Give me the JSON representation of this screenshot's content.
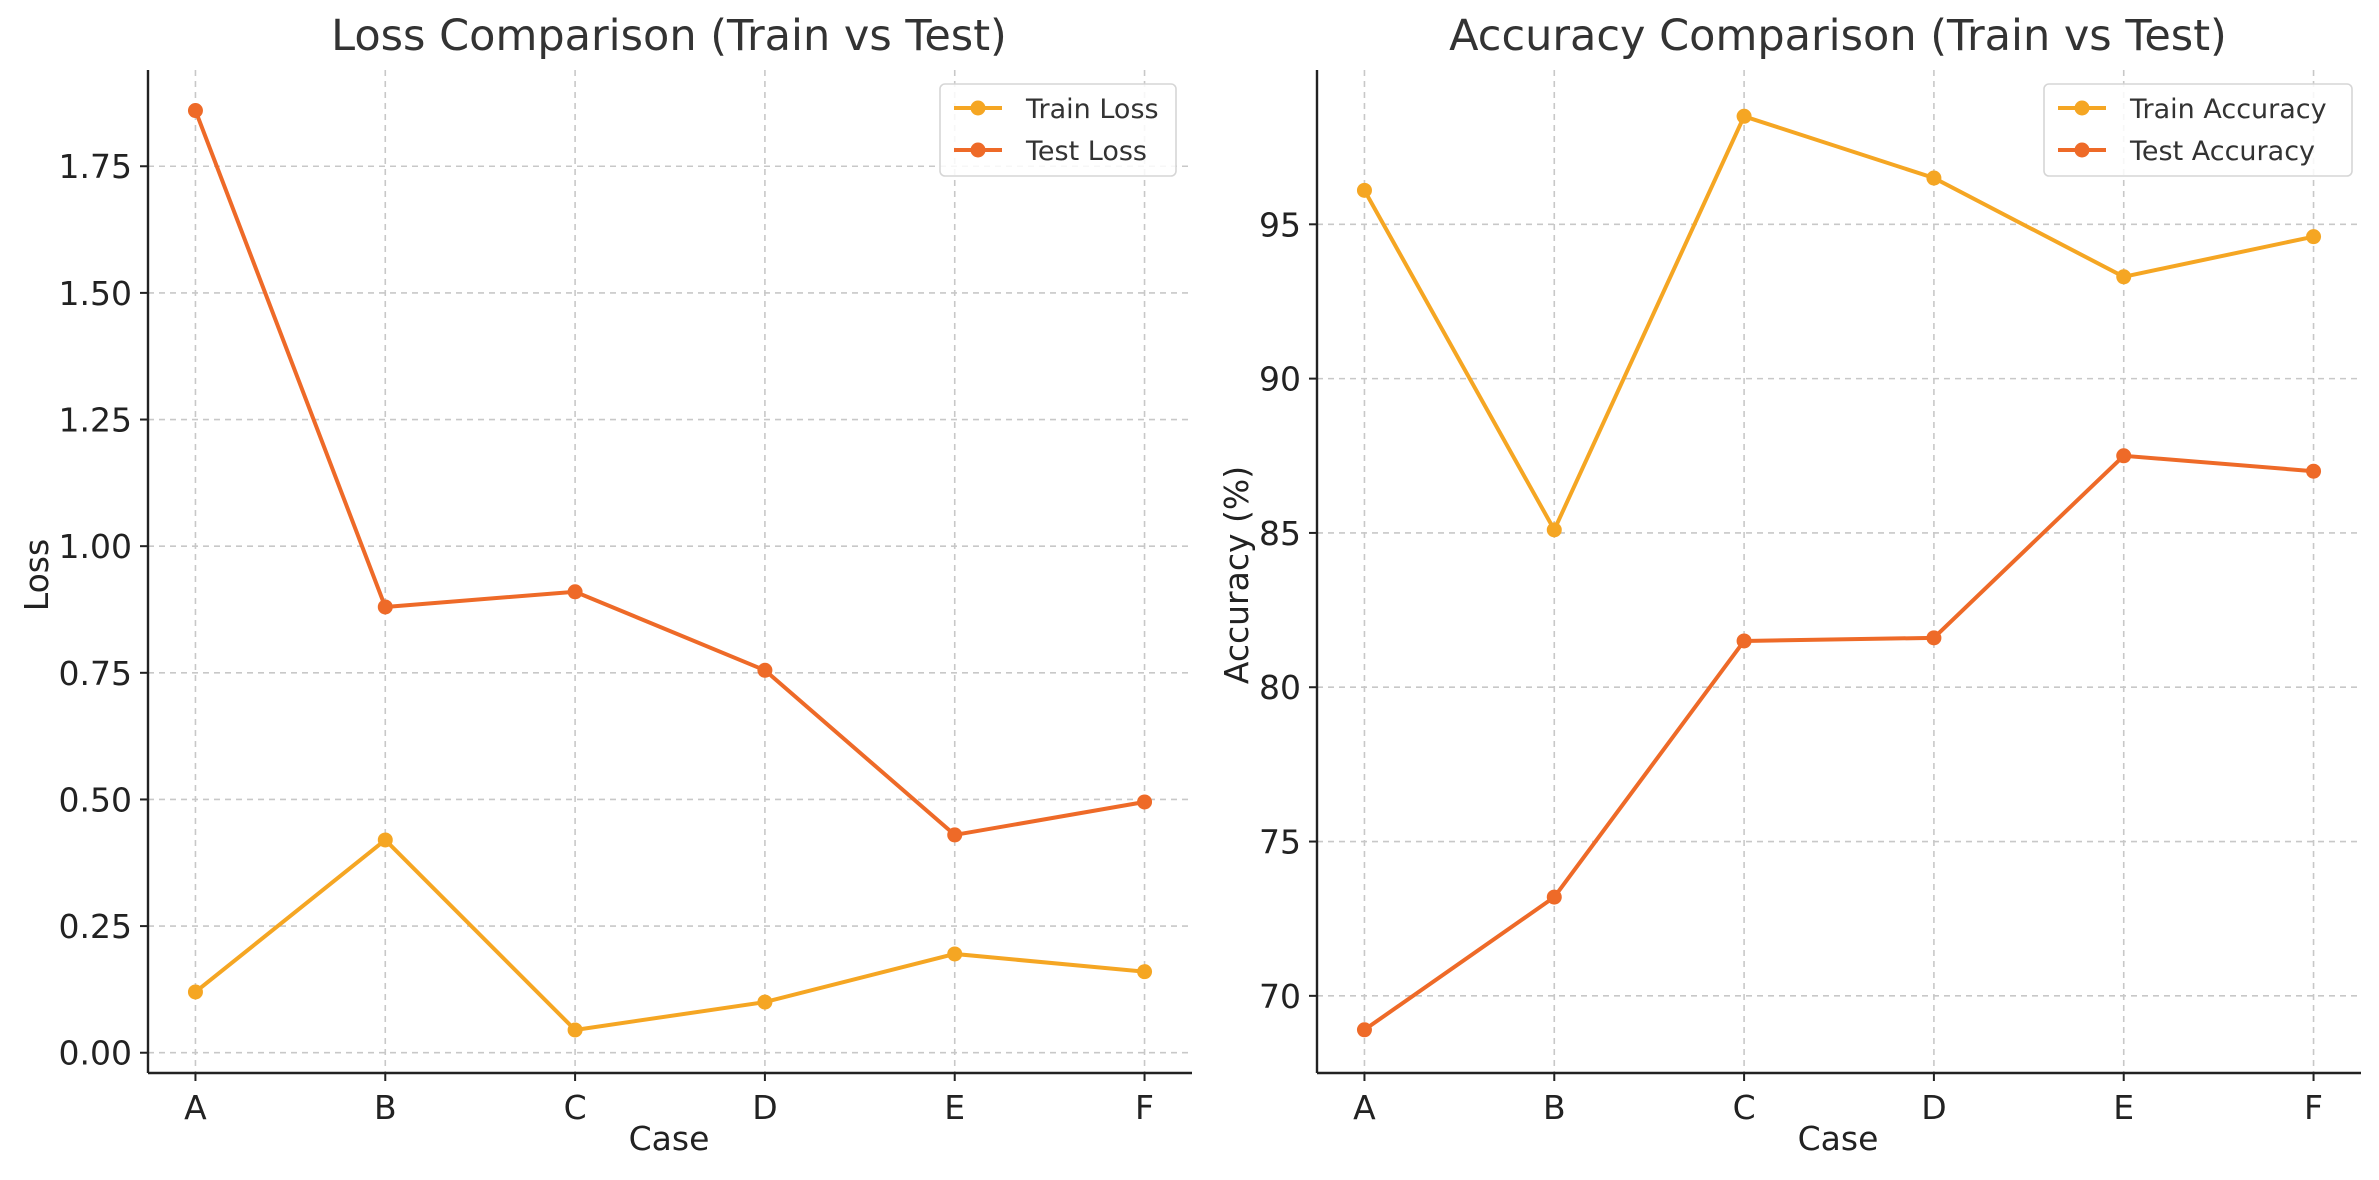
{
  "chart_data": [
    {
      "type": "line",
      "title": "Loss Comparison (Train vs Test)",
      "xlabel": "Case",
      "ylabel": "Loss",
      "categories": [
        "A",
        "B",
        "C",
        "D",
        "E",
        "F"
      ],
      "ylim": [
        -0.04,
        1.94
      ],
      "yticks": [
        0.0,
        0.25,
        0.5,
        0.75,
        1.0,
        1.25,
        1.5,
        1.75
      ],
      "ytick_labels": [
        "0.00",
        "0.25",
        "0.50",
        "0.75",
        "1.00",
        "1.25",
        "1.50",
        "1.75"
      ],
      "grid": true,
      "legend_position": "top-right",
      "series": [
        {
          "name": "Train Loss",
          "color": "#F5A623",
          "values": [
            0.12,
            0.42,
            0.045,
            0.1,
            0.195,
            0.16
          ]
        },
        {
          "name": "Test Loss",
          "color": "#EE6A28",
          "values": [
            1.86,
            0.88,
            0.91,
            0.755,
            0.43,
            0.495
          ]
        }
      ]
    },
    {
      "type": "line",
      "title": "Accuracy Comparison (Train vs Test)",
      "xlabel": "Case",
      "ylabel": "Accuracy (%)",
      "categories": [
        "A",
        "B",
        "C",
        "D",
        "E",
        "F"
      ],
      "ylim": [
        67.5,
        100
      ],
      "yticks": [
        70,
        75,
        80,
        85,
        90,
        95
      ],
      "ytick_labels": [
        "70",
        "75",
        "80",
        "85",
        "90",
        "95"
      ],
      "grid": true,
      "legend_position": "top-right",
      "series": [
        {
          "name": "Train Accuracy",
          "color": "#F5A623",
          "values": [
            96.1,
            85.1,
            98.5,
            96.5,
            93.3,
            94.6
          ]
        },
        {
          "name": "Test Accuracy",
          "color": "#EE6A28",
          "values": [
            68.9,
            73.2,
            81.5,
            81.6,
            87.5,
            87.0
          ]
        }
      ]
    }
  ]
}
